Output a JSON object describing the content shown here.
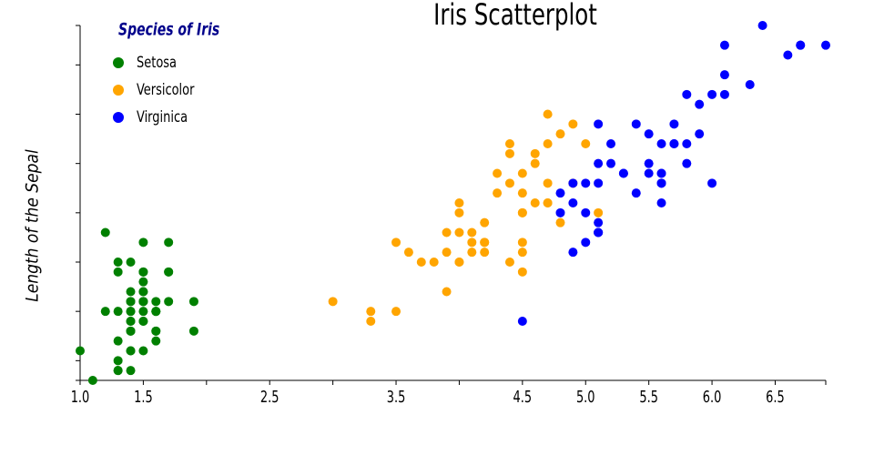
{
  "chart_data": {
    "type": "scatter",
    "title": "Iris Scatterplot",
    "ylabel": "Length of the Sepal",
    "legend_title": "Species of Iris",
    "legend": "top-left",
    "xlim": [
      1.0,
      6.9
    ],
    "ylim": [
      4.3,
      7.9
    ],
    "xticks": [
      {
        "value": 1.0,
        "label": "1.0"
      },
      1.5,
      2.5,
      3.5,
      4.5,
      {
        "value": 5.0,
        "label": "5.0"
      },
      5.5,
      {
        "value": 6.0,
        "label": "6.0"
      },
      6.5
    ],
    "xticks_unlabeled": [
      2,
      3,
      4,
      6.9
    ],
    "yticks_unlabeled": [
      4.5,
      5,
      5.5,
      6,
      6.5,
      7,
      7.5
    ],
    "series": [
      {
        "name": "Setosa",
        "color": "#008000",
        "x": [
          1.4,
          1.4,
          1.3,
          1.5,
          1.4,
          1.7,
          1.4,
          1.5,
          1.4,
          1.5,
          1.5,
          1.6,
          1.4,
          1.1,
          1.2,
          1.5,
          1.3,
          1.4,
          1.7,
          1.5,
          1.7,
          1.5,
          1.0,
          1.7,
          1.9,
          1.6,
          1.6,
          1.5,
          1.4,
          1.6,
          1.6,
          1.5,
          1.5,
          1.4,
          1.5,
          1.2,
          1.3,
          1.4,
          1.3,
          1.5,
          1.3,
          1.3,
          1.3,
          1.6,
          1.9,
          1.4,
          1.6,
          1.4,
          1.5,
          1.4
        ],
        "values": [
          5.1,
          4.9,
          4.7,
          4.6,
          5.0,
          5.4,
          4.6,
          5.0,
          4.4,
          4.9,
          5.4,
          4.8,
          4.8,
          4.3,
          5.8,
          5.7,
          5.4,
          5.1,
          5.7,
          5.1,
          5.4,
          5.1,
          4.6,
          5.1,
          4.8,
          5.0,
          5.0,
          5.2,
          5.2,
          4.7,
          4.8,
          5.4,
          5.2,
          5.5,
          4.9,
          5.0,
          5.5,
          4.9,
          4.4,
          5.1,
          5.0,
          4.5,
          4.4,
          5.0,
          5.1,
          4.8,
          5.1,
          4.6,
          5.3,
          5.0
        ]
      },
      {
        "name": "Versicolor",
        "color": "#ffa500",
        "x": [
          4.7,
          4.5,
          4.9,
          4.0,
          4.6,
          4.5,
          4.7,
          3.3,
          4.6,
          3.9,
          3.5,
          4.2,
          4.0,
          4.7,
          3.6,
          4.4,
          4.5,
          4.1,
          4.5,
          3.9,
          4.8,
          4.0,
          4.9,
          4.7,
          4.3,
          4.4,
          4.8,
          5.0,
          4.5,
          3.5,
          3.8,
          3.7,
          3.9,
          5.1,
          4.5,
          4.5,
          4.7,
          4.4,
          4.1,
          4.0,
          4.4,
          4.6,
          4.0,
          3.3,
          4.2,
          4.2,
          4.2,
          4.3,
          3.0,
          4.1
        ],
        "values": [
          7.0,
          6.4,
          6.9,
          5.5,
          6.5,
          5.7,
          6.3,
          4.9,
          6.6,
          5.2,
          5.0,
          5.9,
          6.0,
          6.1,
          5.6,
          6.7,
          5.6,
          5.8,
          6.2,
          5.6,
          5.9,
          6.1,
          6.3,
          6.1,
          6.4,
          6.6,
          6.8,
          6.7,
          6.0,
          5.7,
          5.5,
          5.5,
          5.8,
          6.0,
          5.4,
          6.0,
          6.7,
          6.3,
          5.6,
          5.5,
          5.5,
          6.1,
          5.8,
          5.0,
          5.6,
          5.7,
          5.7,
          6.2,
          5.1,
          5.7
        ]
      },
      {
        "name": "Virginica",
        "color": "#0000ff",
        "x": [
          6.0,
          5.1,
          5.9,
          5.6,
          5.8,
          6.6,
          4.5,
          6.3,
          5.8,
          6.1,
          5.1,
          5.3,
          5.5,
          5.0,
          5.1,
          5.3,
          5.5,
          6.7,
          6.9,
          5.0,
          5.7,
          4.9,
          6.7,
          4.9,
          5.7,
          6.0,
          4.8,
          4.9,
          5.6,
          5.8,
          6.1,
          6.4,
          5.6,
          5.1,
          5.6,
          6.1,
          5.6,
          5.5,
          4.8,
          5.4,
          5.6,
          5.1,
          5.1,
          5.9,
          5.7,
          5.2,
          5.0,
          5.2,
          5.4,
          5.1
        ],
        "values": [
          6.3,
          5.8,
          7.1,
          6.3,
          6.5,
          7.6,
          4.9,
          7.3,
          6.7,
          7.2,
          6.5,
          6.4,
          6.8,
          5.7,
          5.8,
          6.4,
          6.5,
          7.7,
          7.7,
          6.0,
          6.9,
          5.6,
          7.7,
          6.3,
          6.7,
          7.2,
          6.2,
          6.1,
          6.4,
          7.2,
          7.4,
          7.9,
          6.4,
          6.3,
          6.1,
          7.7,
          6.3,
          6.4,
          6.0,
          6.9,
          6.7,
          6.9,
          5.8,
          6.8,
          6.7,
          6.7,
          6.3,
          6.5,
          6.2,
          5.9
        ]
      }
    ]
  }
}
